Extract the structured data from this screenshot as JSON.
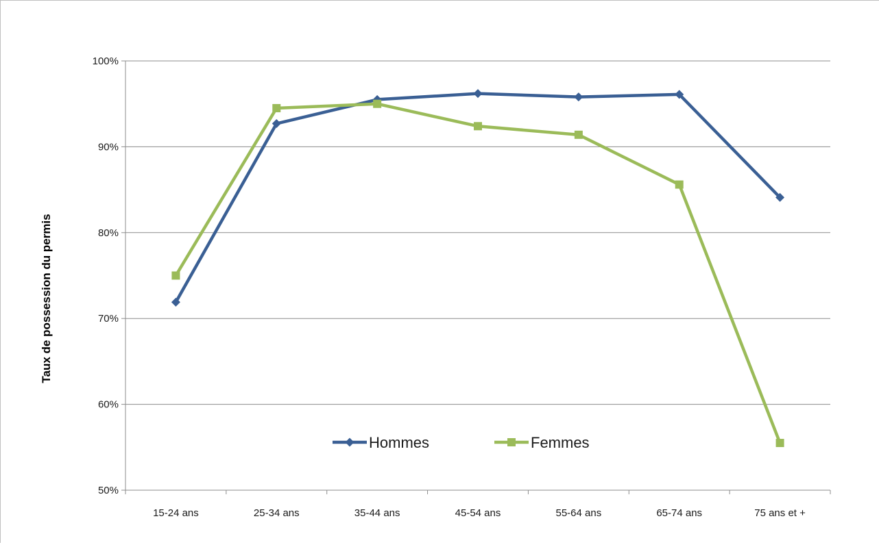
{
  "chart_data": {
    "type": "line",
    "title": "",
    "xlabel": "",
    "ylabel": "Taux de possession du permis",
    "categories": [
      "15-24 ans",
      "25-34 ans",
      "35-44 ans",
      "45-54 ans",
      "55-64 ans",
      "65-74 ans",
      "75 ans et +"
    ],
    "ylim": [
      50,
      100
    ],
    "yticks": [
      50,
      60,
      70,
      80,
      90,
      100
    ],
    "ytick_labels": [
      "50%",
      "60%",
      "70%",
      "80%",
      "90%",
      "100%"
    ],
    "grid": true,
    "legend_position": "bottom-center",
    "series": [
      {
        "name": "Hommes",
        "values": [
          71.9,
          92.7,
          95.5,
          96.2,
          95.8,
          96.1,
          84.1
        ],
        "color": "#3A5F94",
        "marker": "diamond"
      },
      {
        "name": "Femmes",
        "values": [
          75.0,
          94.5,
          95.0,
          92.4,
          91.4,
          85.6,
          55.5
        ],
        "color": "#9BBB59",
        "marker": "square"
      }
    ]
  }
}
